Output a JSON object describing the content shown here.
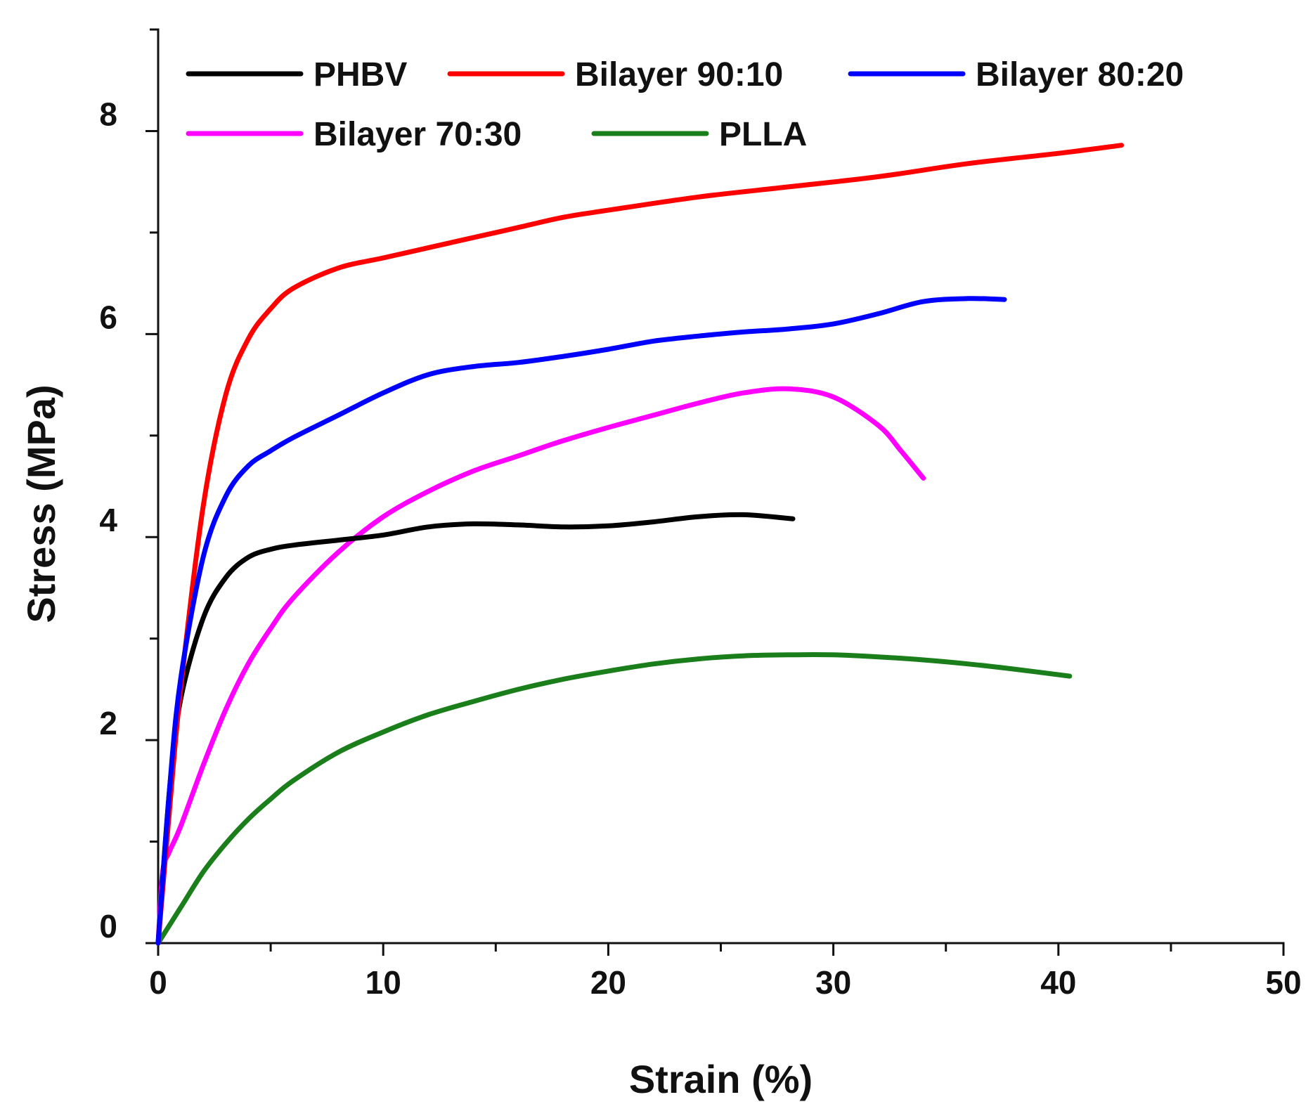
{
  "chart_data": {
    "type": "line",
    "title": "",
    "xlabel": "Strain (%)",
    "ylabel": "Stress (MPa)",
    "xlim": [
      0,
      50
    ],
    "ylim": [
      0,
      9
    ],
    "xticks": [
      0,
      10,
      20,
      30,
      40,
      50
    ],
    "yticks": [
      0,
      2,
      4,
      6,
      8
    ],
    "grid": false,
    "legend_position": "top",
    "series": [
      {
        "name": "PHBV",
        "color": "#000000",
        "points": [
          [
            0,
            0
          ],
          [
            0.5,
            1.5
          ],
          [
            1,
            2.4
          ],
          [
            2,
            3.2
          ],
          [
            3,
            3.6
          ],
          [
            4,
            3.8
          ],
          [
            5,
            3.88
          ],
          [
            6,
            3.92
          ],
          [
            8,
            3.97
          ],
          [
            10,
            4.02
          ],
          [
            12,
            4.1
          ],
          [
            14,
            4.13
          ],
          [
            16,
            4.12
          ],
          [
            18,
            4.1
          ],
          [
            20,
            4.11
          ],
          [
            22,
            4.15
          ],
          [
            24,
            4.2
          ],
          [
            26,
            4.22
          ],
          [
            28.2,
            4.18
          ]
        ]
      },
      {
        "name": "Bilayer 90:10",
        "color": "#ff0000",
        "points": [
          [
            0,
            0
          ],
          [
            0.5,
            1.3
          ],
          [
            1,
            2.5
          ],
          [
            2,
            4.3
          ],
          [
            3,
            5.4
          ],
          [
            4,
            5.95
          ],
          [
            5,
            6.25
          ],
          [
            6,
            6.45
          ],
          [
            8,
            6.65
          ],
          [
            10,
            6.75
          ],
          [
            12,
            6.85
          ],
          [
            14,
            6.95
          ],
          [
            16,
            7.05
          ],
          [
            18,
            7.15
          ],
          [
            20,
            7.22
          ],
          [
            24,
            7.35
          ],
          [
            28,
            7.45
          ],
          [
            32,
            7.55
          ],
          [
            36,
            7.68
          ],
          [
            40,
            7.78
          ],
          [
            42.8,
            7.86
          ]
        ]
      },
      {
        "name": "Bilayer 80:20",
        "color": "#0000ff",
        "points": [
          [
            0,
            0
          ],
          [
            0.5,
            1.5
          ],
          [
            1,
            2.6
          ],
          [
            2,
            3.8
          ],
          [
            3,
            4.4
          ],
          [
            4,
            4.7
          ],
          [
            5,
            4.85
          ],
          [
            6,
            4.98
          ],
          [
            8,
            5.2
          ],
          [
            10,
            5.42
          ],
          [
            12,
            5.6
          ],
          [
            14,
            5.68
          ],
          [
            16,
            5.72
          ],
          [
            18,
            5.78
          ],
          [
            20,
            5.85
          ],
          [
            22,
            5.93
          ],
          [
            24,
            5.98
          ],
          [
            26,
            6.02
          ],
          [
            28,
            6.05
          ],
          [
            30,
            6.1
          ],
          [
            32,
            6.2
          ],
          [
            34,
            6.32
          ],
          [
            36,
            6.35
          ],
          [
            37.6,
            6.34
          ]
        ]
      },
      {
        "name": "Bilayer 70:30",
        "color": "#ff00ff",
        "points": [
          [
            0,
            0
          ],
          [
            0.2,
            0.7
          ],
          [
            0.5,
            0.9
          ],
          [
            1,
            1.15
          ],
          [
            2,
            1.75
          ],
          [
            3,
            2.3
          ],
          [
            4,
            2.75
          ],
          [
            5,
            3.1
          ],
          [
            6,
            3.4
          ],
          [
            8,
            3.85
          ],
          [
            10,
            4.2
          ],
          [
            12,
            4.45
          ],
          [
            14,
            4.65
          ],
          [
            16,
            4.8
          ],
          [
            18,
            4.95
          ],
          [
            20,
            5.08
          ],
          [
            22,
            5.2
          ],
          [
            24,
            5.32
          ],
          [
            26,
            5.42
          ],
          [
            28,
            5.46
          ],
          [
            30,
            5.38
          ],
          [
            32,
            5.1
          ],
          [
            33,
            4.85
          ],
          [
            34,
            4.58
          ]
        ]
      },
      {
        "name": "PLLA",
        "color": "#1a7f1a",
        "points": [
          [
            0,
            0
          ],
          [
            1,
            0.35
          ],
          [
            2,
            0.7
          ],
          [
            3,
            0.98
          ],
          [
            4,
            1.22
          ],
          [
            5,
            1.42
          ],
          [
            6,
            1.6
          ],
          [
            8,
            1.88
          ],
          [
            10,
            2.08
          ],
          [
            12,
            2.25
          ],
          [
            14,
            2.38
          ],
          [
            16,
            2.5
          ],
          [
            18,
            2.6
          ],
          [
            20,
            2.68
          ],
          [
            22,
            2.75
          ],
          [
            24,
            2.8
          ],
          [
            26,
            2.83
          ],
          [
            28,
            2.84
          ],
          [
            30,
            2.84
          ],
          [
            32,
            2.82
          ],
          [
            34,
            2.79
          ],
          [
            36,
            2.75
          ],
          [
            38,
            2.7
          ],
          [
            40.5,
            2.63
          ]
        ]
      }
    ]
  }
}
